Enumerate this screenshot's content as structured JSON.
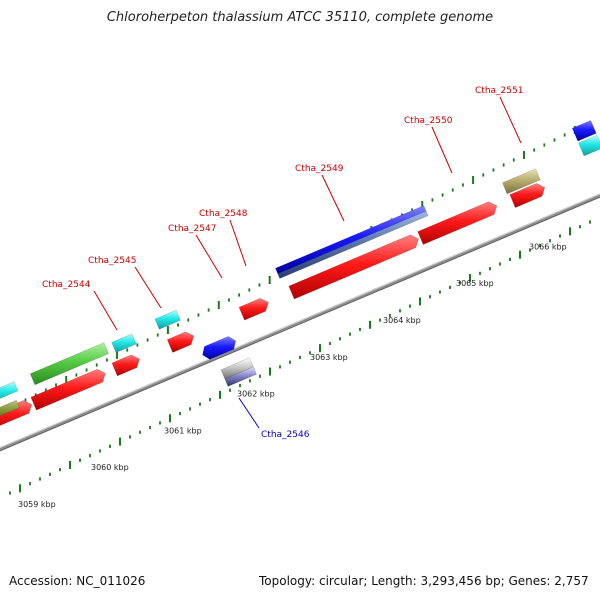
{
  "title": "Chloroherpeton thalassium ATCC 35110, complete genome",
  "footer": {
    "accession": "Accession: NC_011026",
    "topology": "Topology: circular; Length: 3,293,456 bp; Genes: 2,757"
  },
  "colors": {
    "forward_cds": "#ff1a1a",
    "reverse_cds": "#1a1aff",
    "forward_label": "#cc0000",
    "reverse_label": "#0000cc",
    "tick": "#1a7a1a",
    "backbone": "#8c8c8c",
    "trna": "#22e6e6",
    "rrna": "#55cc44",
    "misc": "#b8b070"
  },
  "kbp_scale": [
    {
      "kbp": 3059,
      "label": "3059 kbp"
    },
    {
      "kbp": 3060,
      "label": "3060 kbp"
    },
    {
      "kbp": 3061,
      "label": "3061 kbp"
    },
    {
      "kbp": 3062,
      "label": "3062 kbp"
    },
    {
      "kbp": 3063,
      "label": "3063 kbp"
    },
    {
      "kbp": 3064,
      "label": "3064 kbp"
    },
    {
      "kbp": 3065,
      "label": "3065 kbp"
    },
    {
      "kbp": 3066,
      "label": "3066 kbp"
    }
  ],
  "gene_labels": [
    {
      "name": "Ctha_2544",
      "strand": "forward"
    },
    {
      "name": "Ctha_2545",
      "strand": "forward"
    },
    {
      "name": "Ctha_2546",
      "strand": "reverse"
    },
    {
      "name": "Ctha_2547",
      "strand": "forward"
    },
    {
      "name": "Ctha_2548",
      "strand": "forward"
    },
    {
      "name": "Ctha_2549",
      "strand": "forward"
    },
    {
      "name": "Ctha_2550",
      "strand": "forward"
    },
    {
      "name": "Ctha_2551",
      "strand": "forward"
    }
  ]
}
